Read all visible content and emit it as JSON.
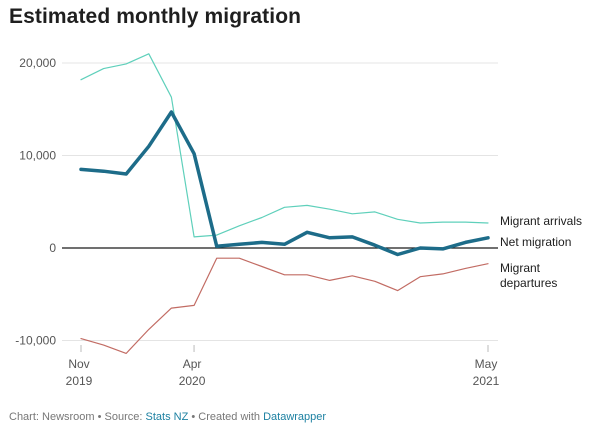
{
  "chart_data": {
    "type": "line",
    "title": "Estimated monthly migration",
    "xlabel": "",
    "ylabel": "",
    "ylim": [
      -10000,
      21000
    ],
    "yticks": [
      20000,
      10000,
      0,
      -10000
    ],
    "ytick_labels": [
      "20,000",
      "10,000",
      "0",
      "-10,000"
    ],
    "x": [
      "2019-11",
      "2019-12",
      "2020-01",
      "2020-02",
      "2020-03",
      "2020-04",
      "2020-05",
      "2020-06",
      "2020-07",
      "2020-08",
      "2020-09",
      "2020-10",
      "2020-11",
      "2020-12",
      "2021-01",
      "2021-02",
      "2021-03",
      "2021-04",
      "2021-05"
    ],
    "xticks": [
      {
        "index": 0,
        "line1": "Nov",
        "line2": "2019"
      },
      {
        "index": 5,
        "line1": "Apr",
        "line2": "2020"
      },
      {
        "index": 18,
        "line1": "May",
        "line2": "2021"
      }
    ],
    "series": [
      {
        "name": "Migrant arrivals",
        "color": "#5fd0bb",
        "width": 1.2,
        "values": [
          18200,
          19400,
          19900,
          21000,
          16300,
          1200,
          1400,
          2400,
          3300,
          4400,
          4600,
          4200,
          3700,
          3900,
          3100,
          2700,
          2800,
          2800,
          2700
        ]
      },
      {
        "name": "Net migration",
        "color": "#1d6c89",
        "width": 3.5,
        "values": [
          8500,
          8300,
          8000,
          11000,
          14700,
          10200,
          200,
          400,
          600,
          400,
          1700,
          1100,
          1200,
          300,
          -700,
          0,
          -100,
          600,
          1100
        ]
      },
      {
        "name": "Migrant departures",
        "color": "#c26c64",
        "width": 1.2,
        "values": [
          -9800,
          -10500,
          -11400,
          -8800,
          -6500,
          -6200,
          -1100,
          -1100,
          -2000,
          -2900,
          -2900,
          -3500,
          -3000,
          -3600,
          -4600,
          -3100,
          -2800,
          -2200,
          -1700
        ]
      }
    ],
    "legend": [
      "Migrant arrivals",
      "Net migration",
      "Migrant",
      "departures"
    ]
  },
  "footer": {
    "prefix": "Chart: Newsroom • Source: ",
    "source": "Stats NZ",
    "middle": " • Created with ",
    "tool": "Datawrapper"
  }
}
